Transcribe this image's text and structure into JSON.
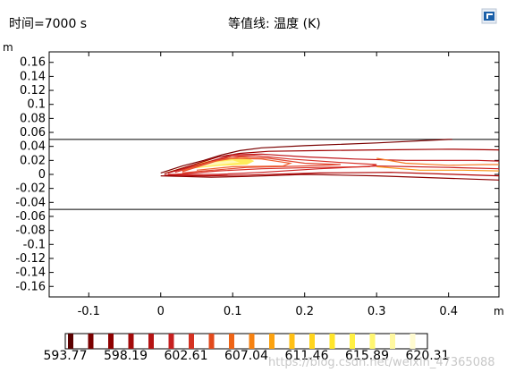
{
  "header": {
    "time_label": "时间=7000 s",
    "plot_title": "等值线: 温度 (K)"
  },
  "watermark": "https://blog.csdn.net/weixin_47365088",
  "logo_icon": "comsol-logo-icon",
  "colors": {
    "line_dark": "#7a0000",
    "line_mid": "#c0181c",
    "fill_hot": "#ffff66",
    "accent": "#1a5fa8"
  },
  "chart_data": {
    "type": "contour",
    "title": "等值线: 温度 (K)",
    "xlabel": "m",
    "ylabel": "m",
    "xlim": [
      -0.155,
      0.47
    ],
    "ylim": [
      -0.175,
      0.175
    ],
    "xticks": [
      -0.1,
      0,
      0.1,
      0.2,
      0.3,
      0.4
    ],
    "yticks": [
      0.16,
      0.14,
      0.12,
      0.1,
      0.08,
      0.06,
      0.04,
      0.02,
      0,
      -0.02,
      -0.04,
      -0.06,
      -0.08,
      -0.1,
      -0.12,
      -0.14,
      -0.16
    ],
    "boundary_lines_y": [
      0.05,
      -0.05
    ],
    "colorbar": {
      "labels": [
        "593.77",
        "598.19",
        "602.61",
        "607.04",
        "611.46",
        "615.89",
        "620.31"
      ],
      "min": 593.77,
      "max": 620.31,
      "count": 18
    },
    "contours": [
      {
        "points": [
          [
            0,
            0.002
          ],
          [
            0.03,
            0.012
          ],
          [
            0.06,
            0.02
          ],
          [
            0.085,
            0.028
          ],
          [
            0.11,
            0.034
          ],
          [
            0.14,
            0.038
          ],
          [
            0.2,
            0.041
          ],
          [
            0.3,
            0.045
          ],
          [
            0.4,
            0.05
          ],
          [
            0.405,
            0.05
          ]
        ]
      },
      {
        "points": [
          [
            0,
            -0.002
          ],
          [
            0.03,
            -0.003
          ],
          [
            0.07,
            -0.004
          ],
          [
            0.12,
            -0.003
          ],
          [
            0.2,
            0.0
          ],
          [
            0.3,
            -0.002
          ],
          [
            0.47,
            -0.008
          ]
        ]
      },
      {
        "points": [
          [
            0.005,
            0.001
          ],
          [
            0.04,
            0.012
          ],
          [
            0.08,
            0.025
          ],
          [
            0.11,
            0.03
          ],
          [
            0.15,
            0.033
          ],
          [
            0.22,
            0.034
          ],
          [
            0.3,
            0.035
          ],
          [
            0.4,
            0.036
          ],
          [
            0.47,
            0.035
          ]
        ]
      },
      {
        "points": [
          [
            0.005,
            -0.001
          ],
          [
            0.06,
            -0.002
          ],
          [
            0.12,
            -0.001
          ],
          [
            0.22,
            0.002
          ],
          [
            0.32,
            0.003
          ],
          [
            0.47,
            -0.002
          ]
        ]
      },
      {
        "points": [
          [
            0.01,
            0.002
          ],
          [
            0.06,
            0.016
          ],
          [
            0.1,
            0.028
          ],
          [
            0.14,
            0.029
          ],
          [
            0.2,
            0.025
          ],
          [
            0.27,
            0.022
          ],
          [
            0.34,
            0.02
          ],
          [
            0.44,
            0.02
          ],
          [
            0.47,
            0.019
          ]
        ]
      },
      {
        "points": [
          [
            0.01,
            0.0
          ],
          [
            0.08,
            0.0
          ],
          [
            0.14,
            0.003
          ],
          [
            0.22,
            0.008
          ],
          [
            0.3,
            0.012
          ],
          [
            0.4,
            0.01
          ],
          [
            0.47,
            0.008
          ]
        ]
      },
      {
        "points": [
          [
            0.02,
            0.003
          ],
          [
            0.07,
            0.018
          ],
          [
            0.1,
            0.026
          ],
          [
            0.13,
            0.027
          ],
          [
            0.18,
            0.022
          ],
          [
            0.25,
            0.017
          ],
          [
            0.3,
            0.014
          ],
          [
            0.29,
            0.011
          ],
          [
            0.22,
            0.01
          ],
          [
            0.14,
            0.008
          ],
          [
            0.08,
            0.005
          ],
          [
            0.02,
            0.0
          ]
        ]
      },
      {
        "points": [
          [
            0.03,
            0.004
          ],
          [
            0.08,
            0.02
          ],
          [
            0.11,
            0.025
          ],
          [
            0.15,
            0.023
          ],
          [
            0.2,
            0.016
          ],
          [
            0.25,
            0.014
          ],
          [
            0.2,
            0.012
          ],
          [
            0.12,
            0.01
          ],
          [
            0.06,
            0.005
          ],
          [
            0.03,
            0.002
          ]
        ]
      },
      {
        "points": [
          [
            0.03,
            0.005
          ],
          [
            0.07,
            0.018
          ],
          [
            0.1,
            0.023
          ],
          [
            0.14,
            0.022
          ],
          [
            0.18,
            0.016
          ],
          [
            0.17,
            0.012
          ],
          [
            0.1,
            0.011
          ],
          [
            0.05,
            0.006
          ]
        ]
      },
      {
        "points": [
          [
            0.3,
            0.023
          ],
          [
            0.34,
            0.016
          ],
          [
            0.4,
            0.013
          ],
          [
            0.45,
            0.014
          ],
          [
            0.47,
            0.014
          ]
        ]
      },
      {
        "points": [
          [
            0.3,
            0.011
          ],
          [
            0.36,
            0.006
          ],
          [
            0.42,
            0.006
          ],
          [
            0.47,
            0.005
          ]
        ]
      }
    ],
    "filled_regions": [
      {
        "points": [
          [
            0.005,
            0.002
          ],
          [
            0.03,
            0.01
          ],
          [
            0.06,
            0.018
          ],
          [
            0.09,
            0.024
          ],
          [
            0.12,
            0.024
          ],
          [
            0.13,
            0.019
          ],
          [
            0.12,
            0.014
          ],
          [
            0.08,
            0.012
          ],
          [
            0.04,
            0.008
          ],
          [
            0.01,
            0.003
          ]
        ],
        "color": "#ffec5c"
      },
      {
        "points": [
          [
            0.01,
            0.003
          ],
          [
            0.04,
            0.012
          ],
          [
            0.07,
            0.017
          ],
          [
            0.1,
            0.02
          ],
          [
            0.11,
            0.017
          ],
          [
            0.08,
            0.014
          ],
          [
            0.04,
            0.009
          ]
        ],
        "color": "#fff7b8"
      }
    ]
  }
}
